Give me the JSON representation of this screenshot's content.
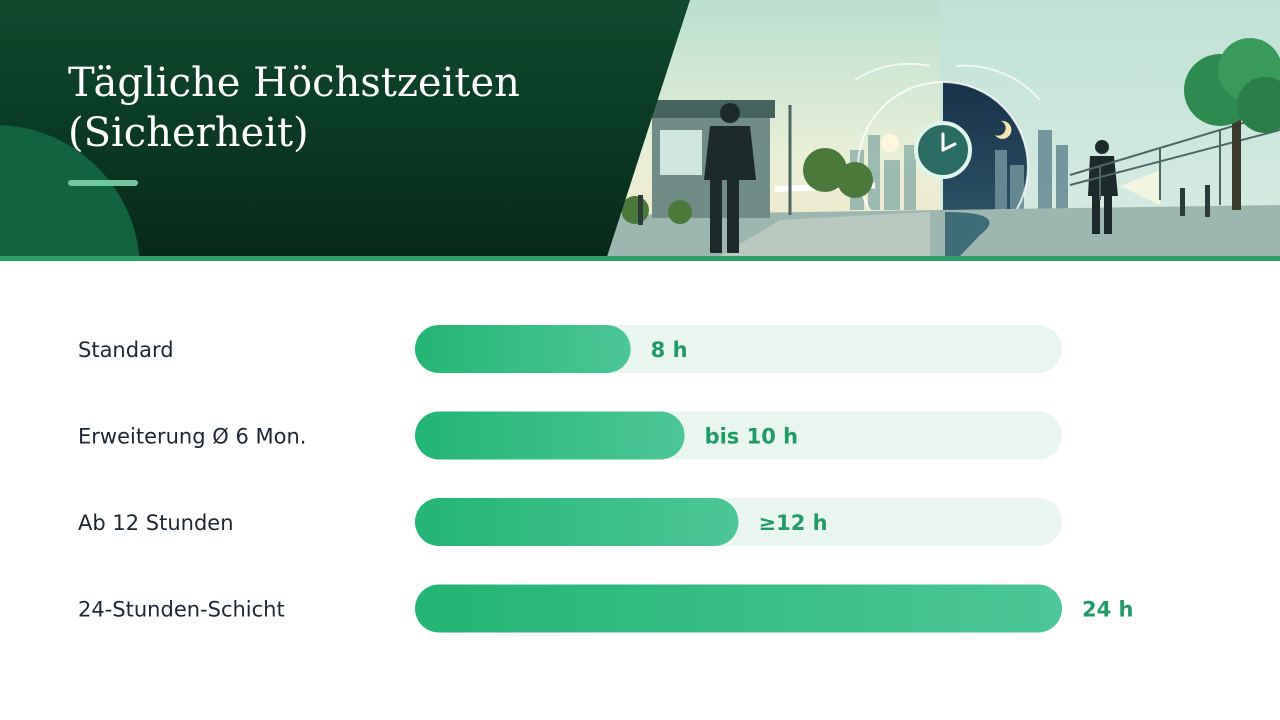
{
  "header": {
    "title_line1": "Tägliche Höchstzeiten",
    "title_line2": "(Sicherheit)",
    "illustration_icons": [
      "guard-booth-icon",
      "security-guard-icon",
      "clock-icon",
      "sun-icon",
      "moon-icon",
      "flashlight-guard-icon",
      "tree-icon"
    ]
  },
  "colors": {
    "header_dark": "#062a19",
    "accent": "#2f9e6a",
    "bar_fill": "#22b573",
    "bar_track": "#e9f6ef",
    "value_text": "#1f9c66"
  },
  "chart_data": {
    "type": "bar",
    "orientation": "horizontal",
    "categories": [
      "Standard",
      "Erweiterung Ø 6 Mon.",
      "Ab 12 Stunden",
      "24-Stunden-Schicht"
    ],
    "values": [
      8,
      10,
      12,
      24
    ],
    "value_labels": [
      "8 h",
      "bis 10 h",
      "≥12 h",
      "24 h"
    ],
    "unit": "h",
    "xlim": [
      0,
      24
    ],
    "grid": false,
    "title": ""
  }
}
